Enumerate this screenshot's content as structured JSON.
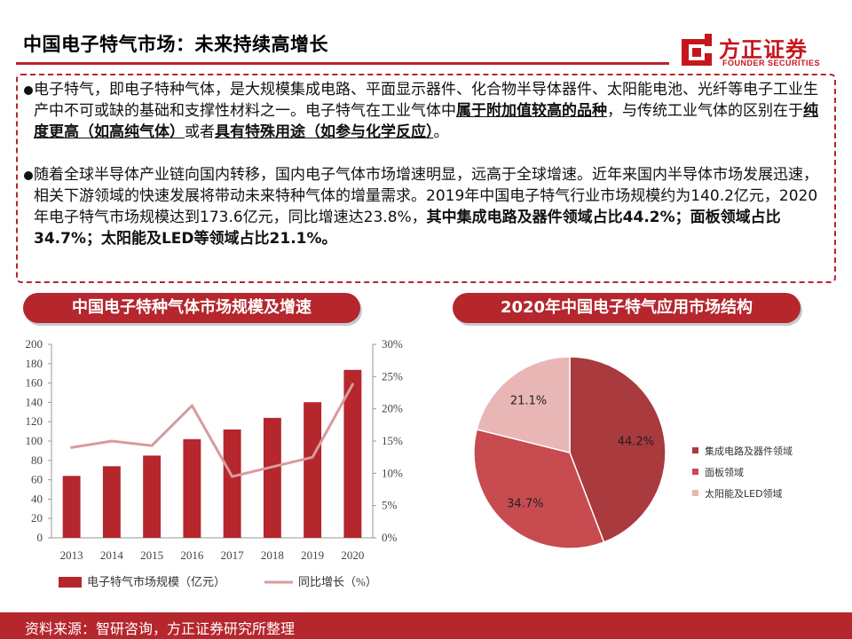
{
  "header": {
    "title": "中国电子特气市场：未来持续高增长",
    "logo_cn": "方正证券",
    "logo_en": "FOUNDER SECURITIES",
    "brand_color": "#b5262d"
  },
  "bullets": [
    {
      "parts": [
        {
          "t": "电子特气，即电子特种气体，是大规模集成电路、平面显示器件、化合物半导体器件、太阳能电池、光纤等电子工业生产中不可或缺的基础和支撑性材料之一。电子特气在工业气体中",
          "s": "n"
        },
        {
          "t": "属于附加值较高的品种",
          "s": "bu"
        },
        {
          "t": "，与传统工业气体的区别在于",
          "s": "n"
        },
        {
          "t": "纯度更高（如高纯气体）",
          "s": "bu"
        },
        {
          "t": "或者",
          "s": "n"
        },
        {
          "t": "具有特殊用途（如参与化学反应）",
          "s": "bu"
        },
        {
          "t": "。",
          "s": "n"
        }
      ]
    },
    {
      "parts": [
        {
          "t": "随着全球半导体产业链向国内转移，国内电子气体市场增速明显，远高于全球增速。近年来国内半导体市场发展迅速，相关下游领域的快速发展将带动未来特种气体的增量需求。2019年中国电子特气行业市场规模约为140.2亿元，2020年电子特气市场规模达到173.6亿元，同比增速达23.8%，",
          "s": "n"
        },
        {
          "t": "其中集成电路及器件领域占比44.2%；面板领域占比34.7%；太阳能及LED等领域占比21.1%。",
          "s": "b"
        }
      ]
    }
  ],
  "chart_data": [
    {
      "type": "bar",
      "title": "中国电子特种气体市场规模及增速",
      "categories": [
        "2013",
        "2014",
        "2015",
        "2016",
        "2017",
        "2018",
        "2019",
        "2020"
      ],
      "series": [
        {
          "name": "电子特气市场规模（亿元）",
          "type": "bar",
          "axis": "left",
          "color": "#b5262d",
          "values": [
            64,
            74,
            85,
            102,
            112,
            124,
            140.2,
            173.6
          ]
        },
        {
          "name": "同比增长（%）",
          "type": "line",
          "axis": "right",
          "color": "#d99a9c",
          "values": [
            14,
            15,
            14.3,
            20.5,
            9.5,
            11,
            12.5,
            23.8
          ]
        }
      ],
      "ylim": [
        0,
        200
      ],
      "y_ticks": [
        "0",
        "20",
        "40",
        "60",
        "80",
        "100",
        "120",
        "140",
        "160",
        "180",
        "200"
      ],
      "y2lim": [
        0,
        30
      ],
      "y2_ticks": [
        "0%",
        "5%",
        "10%",
        "15%",
        "20%",
        "25%",
        "30%"
      ],
      "legend_position": "bottom",
      "grid": false
    },
    {
      "type": "pie",
      "title": "2020年中国电子特气应用市场结构",
      "slices": [
        {
          "label": "集成电路及器件领域",
          "value": 44.2,
          "display": "44.2%",
          "color": "#a93a3d"
        },
        {
          "label": "面板领域",
          "value": 34.7,
          "display": "34.7%",
          "color": "#c84b4f"
        },
        {
          "label": "太阳能及LED领域",
          "value": 21.1,
          "display": "21.1%",
          "color": "#e7b6b5"
        }
      ],
      "legend_position": "right"
    }
  ],
  "footer": {
    "source": "资料来源：智研咨询，方正证券研究所整理"
  }
}
